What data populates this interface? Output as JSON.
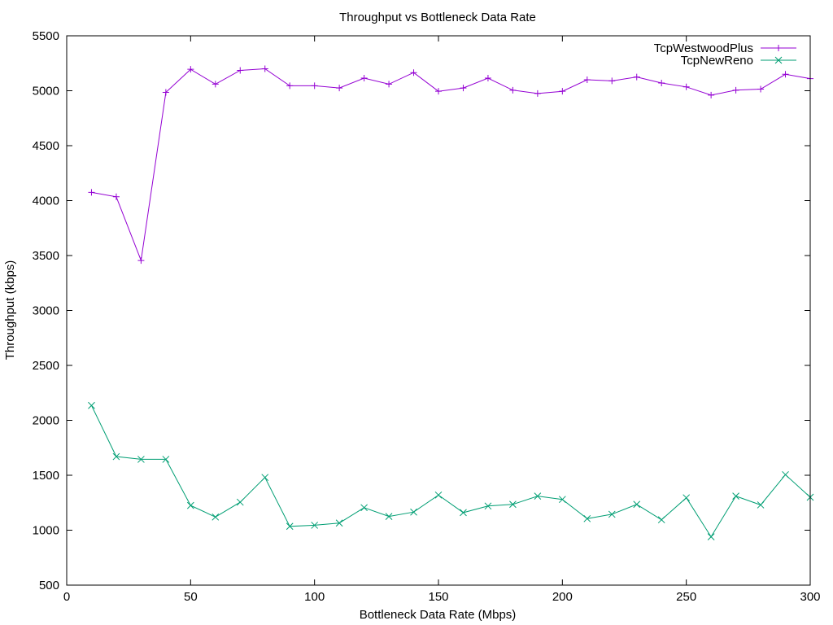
{
  "chart_data": {
    "type": "line",
    "title": "Throughput vs Bottleneck Data Rate",
    "xlabel": "Bottleneck Data Rate (Mbps)",
    "ylabel": "Throughput (kbps)",
    "xlim": [
      0,
      300
    ],
    "ylim": [
      500,
      5500
    ],
    "xticks": [
      0,
      50,
      100,
      150,
      200,
      250,
      300
    ],
    "yticks": [
      500,
      1000,
      1500,
      2000,
      2500,
      3000,
      3500,
      4000,
      4500,
      5000,
      5500
    ],
    "grid": false,
    "legend_position": "top-right",
    "x": [
      10,
      20,
      30,
      40,
      50,
      60,
      70,
      80,
      90,
      100,
      110,
      120,
      130,
      140,
      150,
      160,
      170,
      180,
      190,
      200,
      210,
      220,
      230,
      240,
      250,
      260,
      270,
      280,
      290,
      300
    ],
    "series": [
      {
        "name": "TcpWestwoodPlus",
        "color": "#9400d3",
        "marker": "plus",
        "values": [
          4075,
          4035,
          3455,
          4985,
          5195,
          5060,
          5185,
          5200,
          5045,
          5045,
          5025,
          5115,
          5060,
          5165,
          4995,
          5025,
          5115,
          5005,
          4975,
          4995,
          5100,
          5090,
          5125,
          5070,
          5035,
          4960,
          5005,
          5015,
          5150,
          5110
        ]
      },
      {
        "name": "TcpNewReno",
        "color": "#009e73",
        "marker": "cross",
        "values": [
          2135,
          1670,
          1645,
          1645,
          1225,
          1120,
          1255,
          1480,
          1035,
          1045,
          1065,
          1205,
          1125,
          1165,
          1320,
          1160,
          1220,
          1235,
          1310,
          1280,
          1105,
          1145,
          1235,
          1095,
          1295,
          940,
          1310,
          1230,
          1505,
          1300
        ]
      }
    ]
  }
}
